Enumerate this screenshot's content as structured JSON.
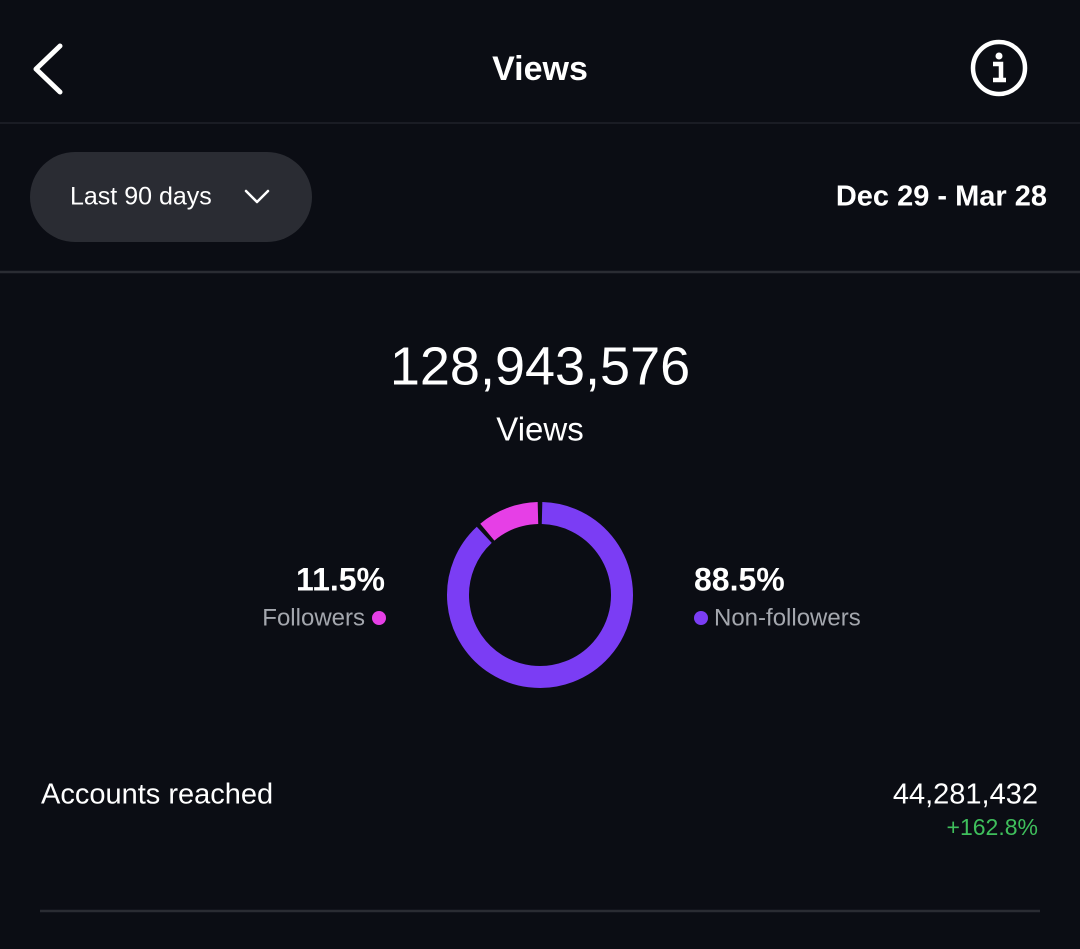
{
  "header": {
    "title": "Views"
  },
  "filter": {
    "period": "Last 90 days",
    "date_range": "Dec 29 - Mar 28"
  },
  "summary": {
    "total": "128,943,576",
    "total_label": "Views"
  },
  "chart_data": {
    "type": "donut",
    "categories": [
      "Followers",
      "Non-followers"
    ],
    "values": [
      11.5,
      88.5
    ],
    "value_labels": [
      "11.5%",
      "88.5%"
    ],
    "colors": [
      "#e63fe6",
      "#7b3df4"
    ]
  },
  "metrics": [
    {
      "label": "Accounts reached",
      "value": "44,281,432",
      "change": "+162.8%"
    }
  ]
}
